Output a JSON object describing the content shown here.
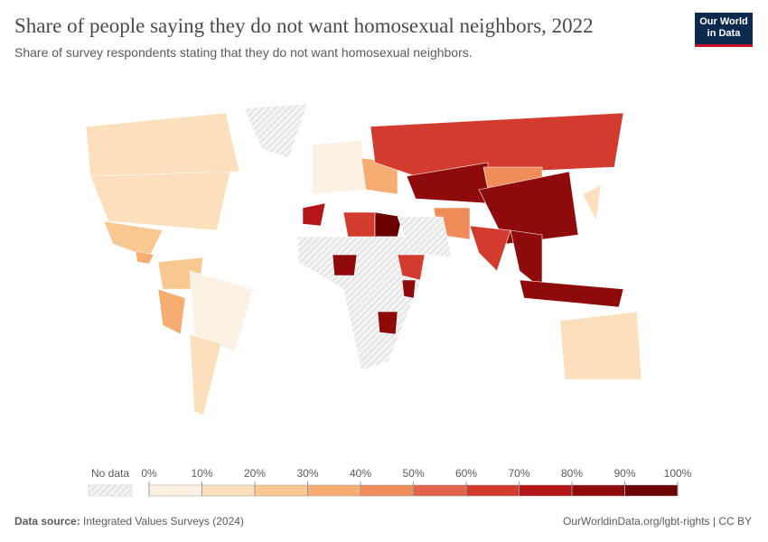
{
  "header": {
    "title": "Share of people saying they do not want homosexual neighbors, 2022",
    "subtitle": "Share of survey respondents stating that they do not want homosexual neighbors.",
    "logo": [
      "Our World",
      "in Data"
    ]
  },
  "map": {
    "values": [
      15,
      12,
      20,
      35,
      25,
      30,
      8,
      12,
      null,
      5,
      35,
      65,
      80,
      45,
      82,
      45,
      62,
      85,
      80,
      18,
      12,
      75,
      60,
      95,
      null,
      88,
      65,
      85,
      85,
      null
    ]
  },
  "legend": {
    "no_data": "No data",
    "ticks": [
      {
        "value": 0,
        "label": "0%"
      },
      {
        "value": 10,
        "label": "10%"
      },
      {
        "value": 20,
        "label": "20%"
      },
      {
        "value": 30,
        "label": "30%"
      },
      {
        "value": 40,
        "label": "40%"
      },
      {
        "value": 50,
        "label": "50%"
      },
      {
        "value": 60,
        "label": "60%"
      },
      {
        "value": 70,
        "label": "70%"
      },
      {
        "value": 80,
        "label": "80%"
      },
      {
        "value": 90,
        "label": "90%"
      },
      {
        "value": 100,
        "label": "100%"
      }
    ],
    "colors": [
      "#fdf1e4",
      "#fce0be",
      "#f9c891",
      "#f6ad72",
      "#f08b5a",
      "#e3634a",
      "#d23b2e",
      "#b51519",
      "#8e0a0b",
      "#6a0000"
    ]
  },
  "footer": {
    "source_label": "Data source:",
    "source": "Integrated Values Surveys (2024)",
    "url": "OurWorldinData.org/lgbt-rights | CC BY"
  }
}
